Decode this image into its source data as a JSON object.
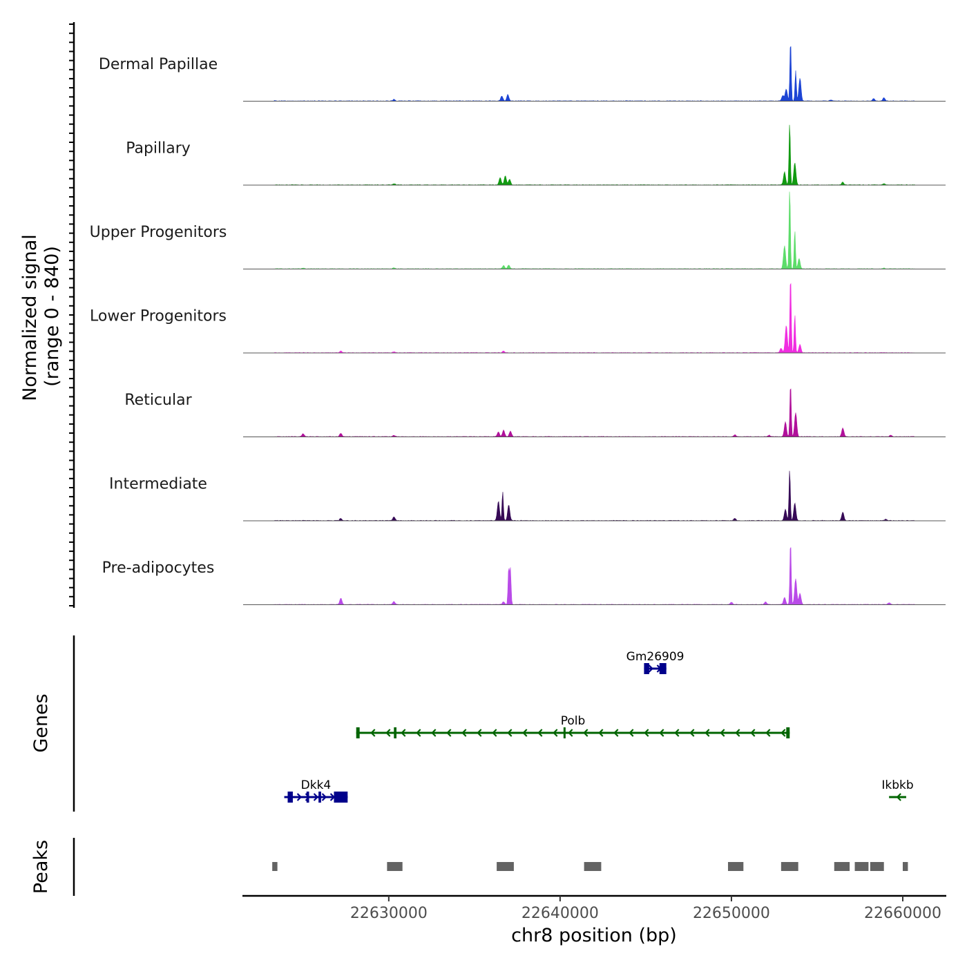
{
  "chart_data": {
    "type": "area",
    "title": "",
    "region": {
      "chromosome": "chr8",
      "start": 22621500,
      "end": 22662500
    },
    "signal_panel": {
      "ylabel_line1": "Normalized signal",
      "ylabel_line2": "(range 0 - 840)",
      "ylim": [
        0,
        840
      ],
      "tracks": [
        {
          "name": "Dermal Papillae",
          "color": "#1d44d4",
          "peaks": [
            [
              22623300,
              6
            ],
            [
              22630300,
              18
            ],
            [
              22636600,
              55
            ],
            [
              22636950,
              70
            ],
            [
              22653000,
              60
            ],
            [
              22653200,
              130
            ],
            [
              22653450,
              670
            ],
            [
              22653750,
              330
            ],
            [
              22654000,
              250
            ],
            [
              22655800,
              10
            ],
            [
              22658300,
              25
            ],
            [
              22658900,
              35
            ]
          ]
        },
        {
          "name": "Papillary",
          "color": "#119a11",
          "peaks": [
            [
              22630300,
              14
            ],
            [
              22636500,
              80
            ],
            [
              22636800,
              100
            ],
            [
              22637050,
              60
            ],
            [
              22653100,
              140
            ],
            [
              22653400,
              680
            ],
            [
              22653700,
              240
            ],
            [
              22656500,
              30
            ],
            [
              22658900,
              12
            ]
          ]
        },
        {
          "name": "Upper Progenitors",
          "color": "#5ddc6a",
          "peaks": [
            [
              22625000,
              8
            ],
            [
              22630300,
              12
            ],
            [
              22636700,
              35
            ],
            [
              22637000,
              40
            ],
            [
              22653100,
              250
            ],
            [
              22653400,
              910
            ],
            [
              22653700,
              420
            ],
            [
              22653950,
              110
            ],
            [
              22658900,
              10
            ]
          ]
        },
        {
          "name": "Lower Progenitors",
          "color": "#f02de0",
          "peaks": [
            [
              22627200,
              18
            ],
            [
              22630300,
              12
            ],
            [
              22636700,
              18
            ],
            [
              22652900,
              50
            ],
            [
              22653200,
              300
            ],
            [
              22653450,
              850
            ],
            [
              22653700,
              420
            ],
            [
              22654000,
              90
            ]
          ]
        },
        {
          "name": "Reticular",
          "color": "#b0119a",
          "peaks": [
            [
              22625000,
              32
            ],
            [
              22627200,
              38
            ],
            [
              22630300,
              14
            ],
            [
              22636400,
              50
            ],
            [
              22636700,
              70
            ],
            [
              22637100,
              60
            ],
            [
              22650200,
              20
            ],
            [
              22652200,
              16
            ],
            [
              22653150,
              160
            ],
            [
              22653450,
              590
            ],
            [
              22653750,
              260
            ],
            [
              22656500,
              95
            ],
            [
              22659300,
              18
            ]
          ]
        },
        {
          "name": "Intermediate",
          "color": "#360a56",
          "peaks": [
            [
              22627200,
              25
            ],
            [
              22630300,
              40
            ],
            [
              22636400,
              210
            ],
            [
              22636650,
              320
            ],
            [
              22637000,
              170
            ],
            [
              22650200,
              25
            ],
            [
              22653150,
              120
            ],
            [
              22653400,
              560
            ],
            [
              22653700,
              190
            ],
            [
              22656500,
              90
            ],
            [
              22659000,
              15
            ]
          ]
        },
        {
          "name": "Pre-adipocytes",
          "color": "#b94be8",
          "peaks": [
            [
              22627200,
              70
            ],
            [
              22630300,
              35
            ],
            [
              22636700,
              30
            ],
            [
              22637000,
              400
            ],
            [
              22637100,
              390
            ],
            [
              22650000,
              25
            ],
            [
              22652000,
              30
            ],
            [
              22653100,
              80
            ],
            [
              22653450,
              700
            ],
            [
              22653750,
              280
            ],
            [
              22654000,
              120
            ],
            [
              22659200,
              20
            ]
          ]
        }
      ]
    },
    "genes_panel": {
      "label": "Genes",
      "genes": [
        {
          "name": "Gm26909",
          "start": 22644900,
          "end": 22646200,
          "strand": "+",
          "color": "#00008b",
          "row": 1,
          "exons": [
            [
              22644900,
              22645200
            ],
            [
              22645800,
              22646200
            ]
          ]
        },
        {
          "name": "Polb",
          "start": 22628100,
          "end": 22653400,
          "strand": "-",
          "color": "#006400",
          "row": 2,
          "exons": [
            [
              22628100,
              22628300
            ],
            [
              22630300,
              22630450
            ],
            [
              22640200,
              22640300
            ],
            [
              22653200,
              22653400
            ]
          ]
        },
        {
          "name": "Dkk4",
          "start": 22623900,
          "end": 22627600,
          "strand": "+",
          "color": "#00008b",
          "row": 3,
          "exons": [
            [
              22624100,
              22624400
            ],
            [
              22625200,
              22625350
            ],
            [
              22625900,
              22626050
            ],
            [
              22626800,
              22627600
            ]
          ]
        },
        {
          "name": "Ikbkb",
          "start": 22659200,
          "end": 22660200,
          "strand": "-",
          "color": "#006400",
          "row": 3,
          "exons": []
        }
      ]
    },
    "peaks_panel": {
      "label": "Peaks",
      "color": "#636363",
      "regions": [
        [
          22623200,
          22623500
        ],
        [
          22629900,
          22630800
        ],
        [
          22636300,
          22637300
        ],
        [
          22641400,
          22642400
        ],
        [
          22649800,
          22650700
        ],
        [
          22652900,
          22653900
        ],
        [
          22656000,
          22656900
        ],
        [
          22657200,
          22658000
        ],
        [
          22658100,
          22658900
        ],
        [
          22660000,
          22660300
        ]
      ]
    },
    "xaxis": {
      "label": "chr8 position (bp)",
      "ticks": [
        22630000,
        22640000,
        22650000,
        22660000
      ],
      "tick_labels": [
        "22630000",
        "22640000",
        "22650000",
        "22660000"
      ]
    }
  }
}
